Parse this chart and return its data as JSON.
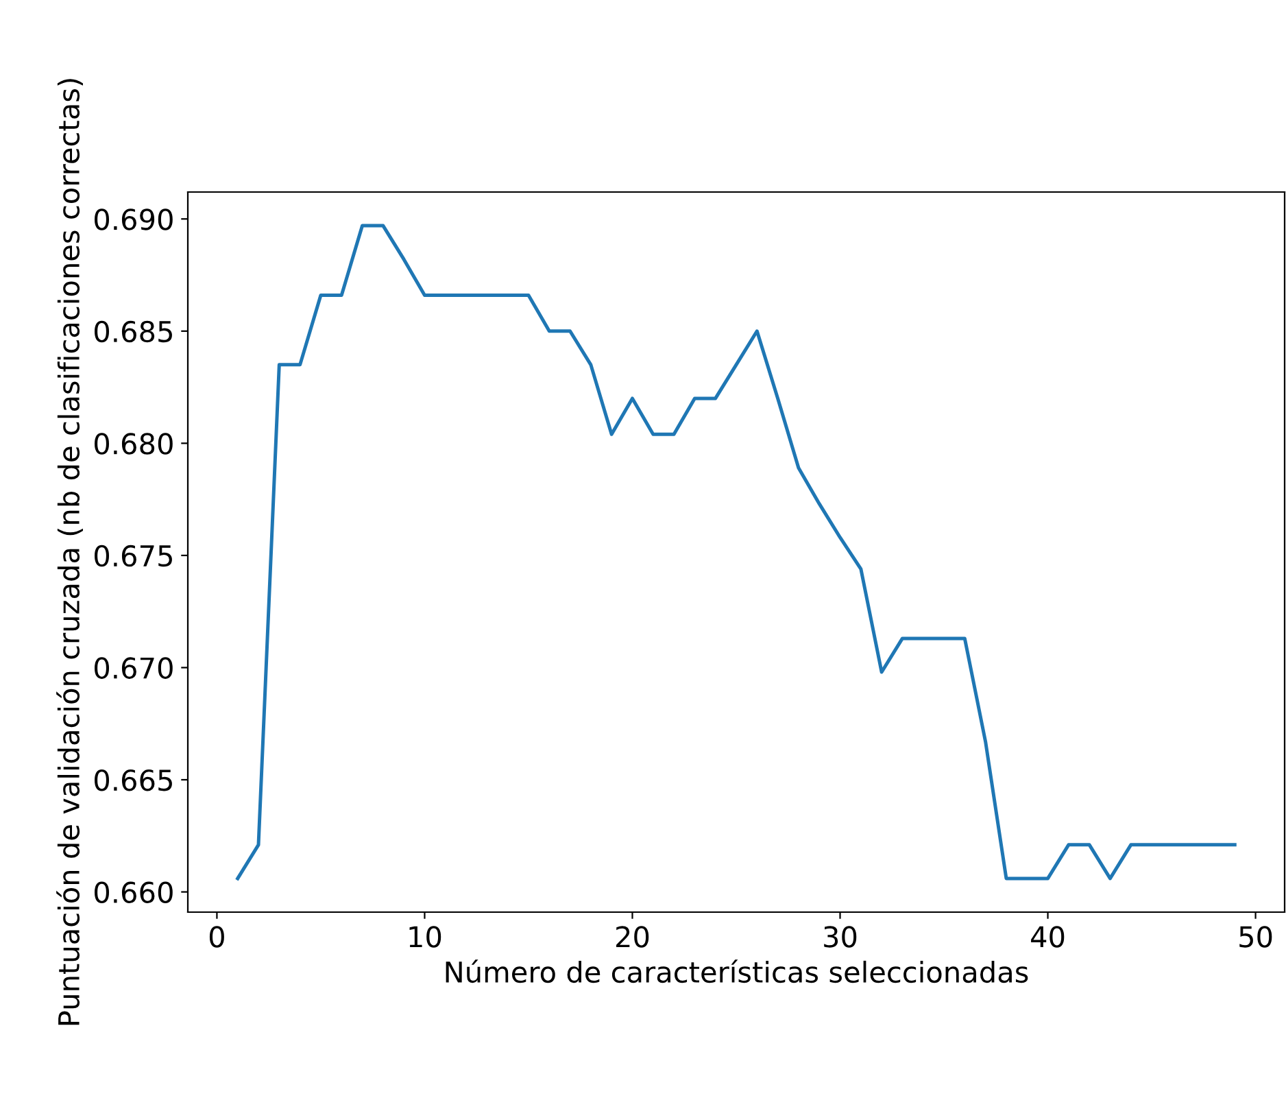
{
  "chart_data": {
    "type": "line",
    "xlabel": "Número de características seleccionadas",
    "ylabel": "Puntuación de validación cruzada (nb de clasificaciones correctas)",
    "x": [
      1,
      2,
      3,
      4,
      5,
      6,
      7,
      8,
      9,
      10,
      11,
      12,
      13,
      14,
      15,
      16,
      17,
      18,
      19,
      20,
      21,
      22,
      23,
      24,
      25,
      26,
      27,
      28,
      29,
      30,
      31,
      32,
      33,
      34,
      35,
      36,
      37,
      38,
      39,
      40,
      41,
      42,
      43,
      44,
      45,
      46,
      47,
      48,
      49
    ],
    "series": [
      {
        "color": "#1f77b4",
        "values": [
          0.6606,
          0.6621,
          0.6835,
          0.6835,
          0.6866,
          0.6866,
          0.6897,
          0.6897,
          0.6882,
          0.6866,
          0.6866,
          0.6866,
          0.6866,
          0.6866,
          0.6866,
          0.685,
          0.685,
          0.6835,
          0.6804,
          0.682,
          0.6804,
          0.6804,
          0.682,
          0.682,
          0.6835,
          0.685,
          0.682,
          0.6789,
          0.6773,
          0.6758,
          0.6744,
          0.6698,
          0.6713,
          0.6713,
          0.6713,
          0.6713,
          0.6667,
          0.6606,
          0.6606,
          0.6606,
          0.6621,
          0.6621,
          0.6606,
          0.6621,
          0.6621,
          0.6621,
          0.6621,
          0.6621,
          0.6621
        ]
      }
    ],
    "xlim": [
      -1.4,
      51.4
    ],
    "ylim": [
      0.6591,
      0.6912
    ],
    "xticks": [
      0,
      10,
      20,
      30,
      40,
      50
    ],
    "yticks": [
      {
        "value": 0.66,
        "label": "0.660"
      },
      {
        "value": 0.665,
        "label": "0.665"
      },
      {
        "value": 0.67,
        "label": "0.670"
      },
      {
        "value": 0.675,
        "label": "0.675"
      },
      {
        "value": 0.68,
        "label": "0.680"
      },
      {
        "value": 0.685,
        "label": "0.685"
      },
      {
        "value": 0.69,
        "label": "0.690"
      }
    ],
    "grid": false,
    "marker": "none",
    "line_style": "solid"
  }
}
